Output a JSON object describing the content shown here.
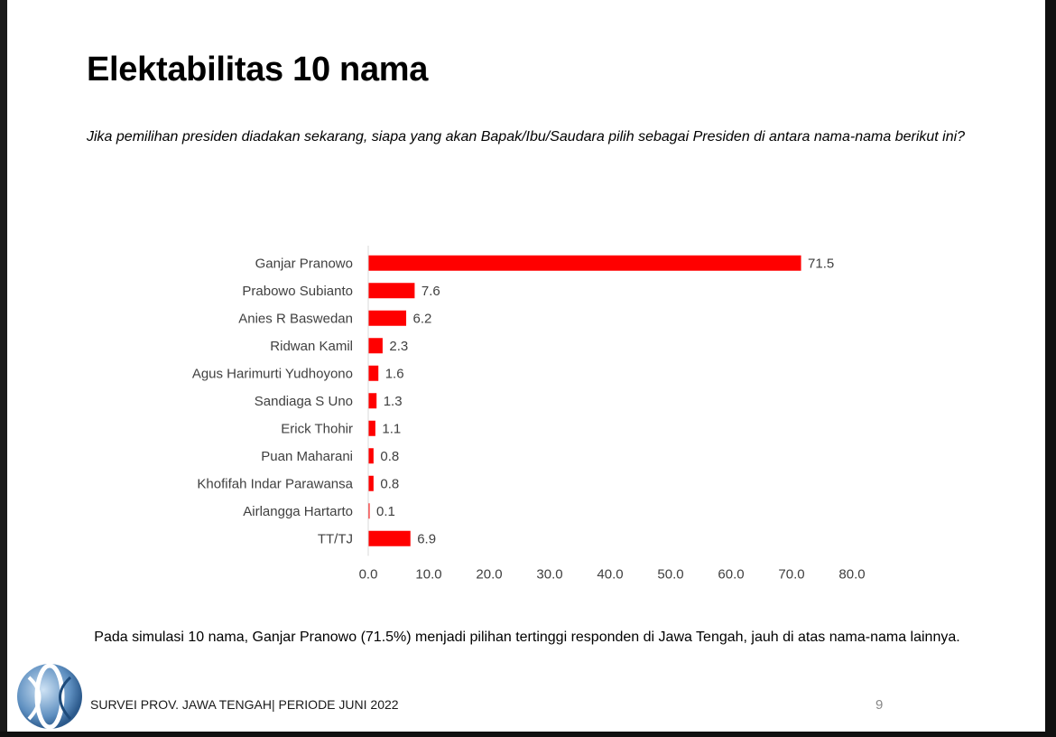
{
  "title": "Elektabilitas 10 nama",
  "question": "Jika pemilihan presiden diadakan sekarang, siapa yang akan Bapak/Ibu/Saudara pilih sebagai Presiden di antara nama-nama berikut ini?",
  "conclusion": "Pada simulasi 10 nama, Ganjar Pranowo (71.5%) menjadi pilihan tertinggi responden di Jawa Tengah, jauh di atas nama-nama lainnya.",
  "footer": "SURVEI PROV. JAWA TENGAH| PERIODE JUNI 2022",
  "page_number": "9",
  "colors": {
    "bar": "#ff0000",
    "axis": "#d9d9d9",
    "text": "#404040"
  },
  "logo_icon": "globe-logo-icon",
  "chart_data": {
    "type": "bar",
    "orientation": "horizontal",
    "title": "",
    "xlabel": "",
    "ylabel": "",
    "categories": [
      "Ganjar Pranowo",
      "Prabowo Subianto",
      "Anies R Baswedan",
      "Ridwan Kamil",
      "Agus Harimurti Yudhoyono",
      "Sandiaga S Uno",
      "Erick Thohir",
      "Puan Maharani",
      "Khofifah Indar Parawansa",
      "Airlangga Hartarto",
      "TT/TJ"
    ],
    "values": [
      71.5,
      7.6,
      6.2,
      2.3,
      1.6,
      1.3,
      1.1,
      0.8,
      0.8,
      0.1,
      6.9
    ],
    "value_labels": [
      "71.5",
      "7.6",
      "6.2",
      "2.3",
      "1.6",
      "1.3",
      "1.1",
      "0.8",
      "0.8",
      "0.1",
      "6.9"
    ],
    "xlim": [
      0,
      80
    ],
    "ticks": [
      "0.0",
      "10.0",
      "20.0",
      "30.0",
      "40.0",
      "50.0",
      "60.0",
      "70.0",
      "80.0"
    ],
    "grid": false
  }
}
